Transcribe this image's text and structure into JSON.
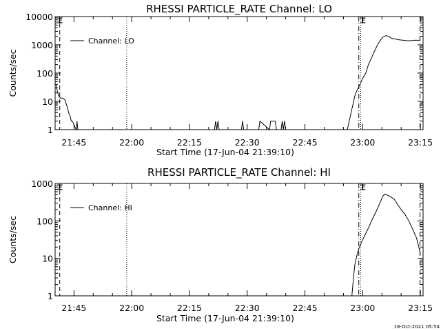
{
  "chart_data": [
    {
      "type": "line",
      "title": "RHESSI PARTICLE_RATE Channel: LO",
      "xlabel": "Start Time (17-Jun-04 21:39:10)",
      "ylabel": "Counts/sec",
      "yscale": "log",
      "ylim": [
        1,
        10000
      ],
      "x_range_minutes": [
        21.65,
        97.0
      ],
      "x_ticks": [
        {
          "label": "21:45",
          "minute": 45
        },
        {
          "label": "22:00",
          "minute": 60
        },
        {
          "label": "22:15",
          "minute": 75
        },
        {
          "label": "22:30",
          "minute": 90
        },
        {
          "label": "22:45",
          "minute": 105
        },
        {
          "label": "23:00",
          "minute": 120
        },
        {
          "label": "23:15",
          "minute": 135
        }
      ],
      "y_ticks": [
        "1",
        "10",
        "100",
        "1000",
        "10000"
      ],
      "legend": {
        "label": "Channel: LO",
        "position": "top-left"
      },
      "vlines": [
        {
          "minute": 41.3,
          "style": "dashed"
        },
        {
          "minute": 58.7,
          "style": "dotted"
        },
        {
          "minute": 119.0,
          "style": "dashdot"
        },
        {
          "minute": 119.5,
          "style": "dotted"
        },
        {
          "minute": 134.9,
          "style": "dashdot"
        }
      ],
      "markers": [
        {
          "minute": 41.3,
          "label": "E"
        },
        {
          "minute": 120.0,
          "label": "E"
        }
      ],
      "series": [
        {
          "x": [
            40.3,
            40.6,
            41.0,
            41.5,
            42.0,
            42.4,
            42.7,
            43.0,
            43.3,
            43.6,
            44.0,
            44.3,
            44.6,
            45.0,
            45.3,
            45.6,
            45.8,
            46.0,
            46.2,
            46.4,
            46.6,
            48.0,
            60.0,
            80.0,
            81.5,
            81.8,
            82.1,
            82.4,
            82.7,
            85.0,
            88.5,
            88.8,
            89.1,
            89.4,
            89.7,
            93.0,
            93.3,
            95.8,
            96.1,
            96.4,
            96.7,
            97.0,
            97.3,
            97.6,
            98.8,
            99.1,
            99.4,
            99.7,
            100.0,
            100.3,
            102.0,
            116.0,
            116.5,
            117.0,
            117.5,
            118.0,
            118.5,
            119.0,
            119.5,
            120.0,
            120.8,
            121.5,
            122.5,
            123.5,
            124.5,
            125.3,
            126.0,
            126.8,
            127.5,
            128.5,
            129.5,
            130.5,
            131.5,
            132.5,
            133.5,
            134.5,
            135.0
          ],
          "y": [
            40,
            25,
            16,
            13,
            13,
            12,
            11,
            8,
            6,
            4,
            3,
            2,
            2,
            1.5,
            1.2,
            1,
            2,
            1,
            1,
            1,
            1,
            1,
            1,
            1,
            1,
            2,
            1,
            2,
            1,
            1,
            1,
            2,
            1,
            1,
            1,
            1,
            2,
            1,
            2,
            2,
            2,
            2,
            2,
            1,
            1,
            2,
            1,
            2,
            1,
            1,
            1,
            1,
            2,
            4,
            8,
            16,
            24,
            32,
            45,
            65,
            100,
            200,
            400,
            800,
            1400,
            1900,
            2100,
            2000,
            1700,
            1600,
            1500,
            1450,
            1400,
            1400,
            1450,
            1450,
            1450
          ]
        }
      ]
    },
    {
      "type": "line",
      "title": "RHESSI PARTICLE_RATE Channel: HI",
      "xlabel": "Start Time (17-Jun-04 21:39:10)",
      "ylabel": "Counts/sec",
      "yscale": "log",
      "ylim": [
        1,
        1000
      ],
      "x_range_minutes": [
        21.65,
        97.0
      ],
      "x_ticks": [
        {
          "label": "21:45",
          "minute": 45
        },
        {
          "label": "22:00",
          "minute": 60
        },
        {
          "label": "22:15",
          "minute": 75
        },
        {
          "label": "22:30",
          "minute": 90
        },
        {
          "label": "22:45",
          "minute": 105
        },
        {
          "label": "23:00",
          "minute": 120
        },
        {
          "label": "23:15",
          "minute": 135
        }
      ],
      "y_ticks": [
        "1",
        "10",
        "100",
        "1000"
      ],
      "legend": {
        "label": "Channel: HI",
        "position": "top-left"
      },
      "vlines": [
        {
          "minute": 41.3,
          "style": "dashed"
        },
        {
          "minute": 58.7,
          "style": "dotted"
        },
        {
          "minute": 119.0,
          "style": "dashdot"
        },
        {
          "minute": 119.5,
          "style": "dotted"
        },
        {
          "minute": 134.9,
          "style": "dashdot"
        }
      ],
      "markers": [
        {
          "minute": 41.3,
          "label": "E"
        },
        {
          "minute": 120.0,
          "label": "E"
        }
      ],
      "series": [
        {
          "x": [
            117.2,
            117.6,
            118.0,
            118.5,
            119.0,
            119.7,
            120.5,
            121.5,
            122.5,
            123.5,
            124.5,
            125.2,
            125.8,
            126.5,
            127.3,
            128.2,
            129.0,
            130.0,
            131.0,
            132.0,
            133.0,
            134.0,
            134.7,
            135.0
          ],
          "y": [
            1,
            3,
            7,
            12,
            18,
            27,
            40,
            65,
            110,
            180,
            300,
            450,
            520,
            480,
            440,
            380,
            280,
            200,
            150,
            100,
            60,
            35,
            18,
            13
          ]
        }
      ]
    }
  ],
  "footer": {
    "timestamp": "18-Oct-2021 05:54"
  }
}
